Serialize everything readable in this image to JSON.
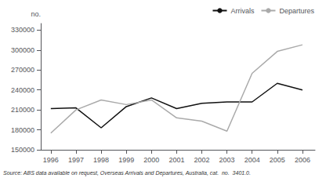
{
  "chart_data": {
    "type": "line",
    "x": [
      1996,
      1997,
      1998,
      1999,
      2000,
      2001,
      2002,
      2003,
      2004,
      2005,
      2006
    ],
    "series": [
      {
        "name": "Arrivals",
        "color": "#111111",
        "values": [
          212000,
          213000,
          183000,
          215000,
          228000,
          212000,
          220000,
          222000,
          222000,
          250000,
          240000
        ]
      },
      {
        "name": "Departures",
        "color": "#aaaaaa",
        "values": [
          175000,
          210000,
          225000,
          218000,
          225000,
          198000,
          193000,
          178000,
          265000,
          298000,
          308000
        ]
      }
    ],
    "xlim": [
      1995.6,
      2006.5
    ],
    "xticks": [
      1996,
      1997,
      1998,
      1999,
      2000,
      2001,
      2002,
      2003,
      2004,
      2005,
      2006
    ],
    "ylim": [
      150000,
      340000
    ],
    "yticks": [
      150000,
      180000,
      210000,
      240000,
      270000,
      300000,
      330000
    ],
    "ylabel": "no.",
    "annotations": [
      "Source: ABS data available on request, Overseas Arrivals and Departures, Australia, cat.  no.  3401.0."
    ],
    "legend": "upper right",
    "grid": false
  }
}
